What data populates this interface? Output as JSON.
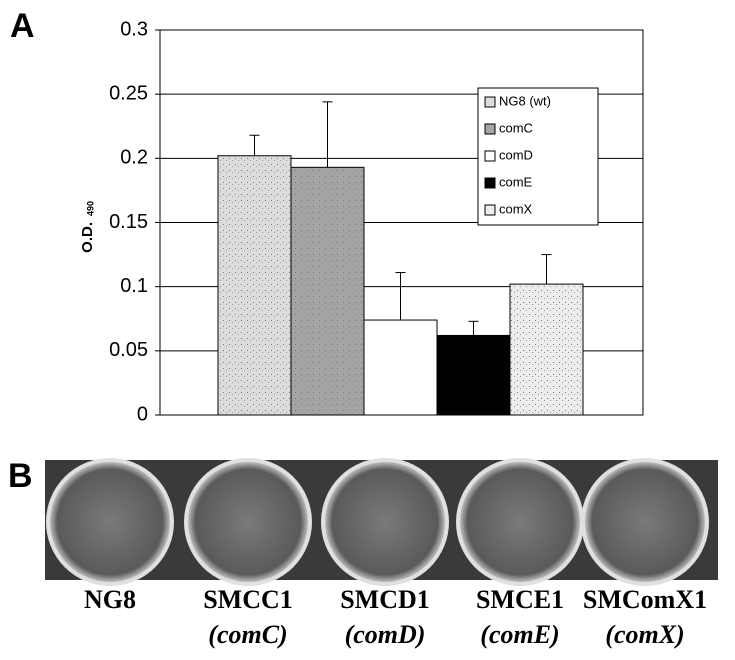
{
  "chart_data": {
    "type": "bar",
    "panel_label": "A",
    "ylabel": {
      "text": "O.D.",
      "subscript": "490"
    },
    "series": [
      {
        "name": "NG8 (wt)",
        "color": "#dcdcdc",
        "values": [
          0.202
        ],
        "errors": [
          0.016
        ]
      },
      {
        "name": "comC",
        "color": "#a4a4a4",
        "values": [
          0.193
        ],
        "errors": [
          0.051
        ]
      },
      {
        "name": "comD",
        "color": "#ffffff",
        "values": [
          0.074
        ],
        "errors": [
          0.037
        ]
      },
      {
        "name": "comE",
        "color": "#000000",
        "values": [
          0.062
        ],
        "errors": [
          0.011
        ]
      },
      {
        "name": "comX",
        "color": "#ececec",
        "values": [
          0.102
        ],
        "errors": [
          0.023
        ]
      }
    ],
    "ylim": [
      0,
      0.3
    ],
    "yticks": [
      0,
      0.05,
      0.1,
      0.15,
      0.2,
      0.25,
      0.3
    ],
    "grid": true,
    "legend": "upper right"
  },
  "photo_panel": {
    "panel_label": "B",
    "wells": [
      {
        "name": "NG8"
      },
      {
        "name": "SMCC1",
        "mutant": "(comC)"
      },
      {
        "name": "SMCD1",
        "mutant": "(comD)"
      },
      {
        "name": "SMCE1",
        "mutant": "(comE)"
      },
      {
        "name": "SMComX1",
        "mutant": "(comX)"
      }
    ]
  }
}
